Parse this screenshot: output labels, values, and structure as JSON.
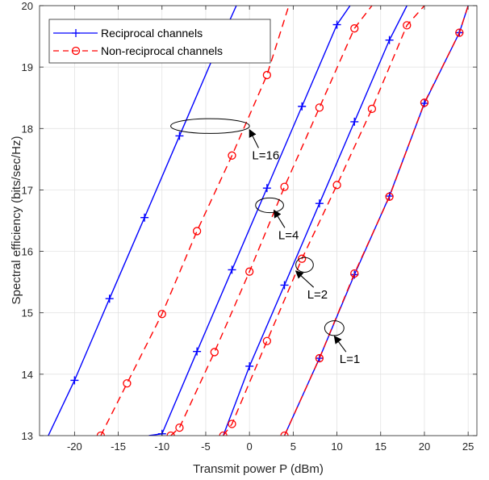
{
  "chart_data": {
    "type": "line",
    "xlabel": "Transmit power P (dBm)",
    "ylabel": "Spectral efficiency (bits/sec/Hz)",
    "xlim": [
      -24,
      26
    ],
    "ylim": [
      13,
      20
    ],
    "xticks": [
      -20,
      -15,
      -10,
      -5,
      0,
      5,
      10,
      15,
      20,
      25
    ],
    "xtick_labels": [
      "-20",
      "-15",
      "-10",
      "-5",
      "0",
      "5",
      "10",
      "15",
      "20",
      "25"
    ],
    "yticks": [
      13,
      14,
      15,
      16,
      17,
      18,
      19,
      20
    ],
    "ytick_labels": [
      "13",
      "14",
      "15",
      "16",
      "17",
      "18",
      "19",
      "20"
    ],
    "grid": true,
    "legend_position": "top-left",
    "legend": [
      {
        "label": "Reciprocal channels",
        "color": "#0000ff",
        "dash": "solid",
        "marker": "plus"
      },
      {
        "label": "Non-reciprocal channels",
        "color": "#ff0000",
        "dash": "dashed",
        "marker": "circle"
      }
    ],
    "series": [
      {
        "group": "L=16",
        "kind": "reciprocal",
        "color": "#0000ff",
        "dash": "solid",
        "marker": "plus",
        "x": [
          -23.0,
          -20,
          -16,
          -12,
          -8,
          -4,
          -1.5
        ],
        "y": [
          13.0,
          13.9,
          15.23,
          16.55,
          17.88,
          19.21,
          20.0
        ]
      },
      {
        "group": "L=16",
        "kind": "non-reciprocal",
        "color": "#ff0000",
        "dash": "dashed",
        "marker": "circle",
        "x": [
          -17.0,
          -14,
          -10,
          -6,
          -2,
          2,
          4.5
        ],
        "y": [
          13.0,
          13.85,
          14.98,
          16.33,
          17.56,
          18.87,
          20.0
        ]
      },
      {
        "group": "L=4",
        "kind": "reciprocal",
        "color": "#0000ff",
        "dash": "solid",
        "marker": "plus",
        "x": [
          -11.5,
          -10,
          -6,
          -2,
          2,
          6,
          10,
          11.5
        ],
        "y": [
          13.0,
          13.03,
          14.37,
          15.7,
          17.03,
          18.36,
          19.69,
          20.0
        ]
      },
      {
        "group": "L=4",
        "kind": "non-reciprocal",
        "color": "#ff0000",
        "dash": "dashed",
        "marker": "circle",
        "x": [
          -9.0,
          -8,
          -4,
          0,
          4,
          8,
          12,
          14.0
        ],
        "y": [
          13.0,
          13.13,
          14.36,
          15.67,
          17.05,
          18.34,
          19.63,
          20.0
        ]
      },
      {
        "group": "L=2",
        "kind": "reciprocal",
        "color": "#0000ff",
        "dash": "solid",
        "marker": "plus",
        "x": [
          -3.0,
          0,
          4,
          8,
          12,
          16,
          18.0
        ],
        "y": [
          13.0,
          14.13,
          15.45,
          16.78,
          18.11,
          19.44,
          20.0
        ]
      },
      {
        "group": "L=2",
        "kind": "non-reciprocal",
        "color": "#ff0000",
        "dash": "dashed",
        "marker": "circle",
        "x": [
          -3.0,
          -2,
          2,
          6,
          10,
          14,
          18,
          20.0
        ],
        "y": [
          13.0,
          13.19,
          14.54,
          15.88,
          17.08,
          18.32,
          19.68,
          20.0
        ]
      },
      {
        "group": "L=1",
        "kind": "reciprocal",
        "color": "#0000ff",
        "dash": "solid",
        "marker": "plus",
        "x": [
          4.0,
          8,
          12,
          16,
          20,
          24,
          25.0
        ],
        "y": [
          13.0,
          14.26,
          15.62,
          16.9,
          18.41,
          19.56,
          20.0
        ]
      },
      {
        "group": "L=1",
        "kind": "non-reciprocal",
        "color": "#ff0000",
        "dash": "dashed",
        "marker": "circle",
        "x": [
          4,
          8,
          12,
          16,
          20,
          24,
          25.0
        ],
        "y": [
          13.0,
          14.26,
          15.64,
          16.89,
          18.42,
          19.56,
          20.0
        ]
      }
    ],
    "annotations": [
      {
        "text": "L=16",
        "ellipse_center": [
          -4.5,
          18.04
        ],
        "ellipse_radius": [
          4.5,
          0.12
        ],
        "arrow_tip": [
          0,
          17.98
        ],
        "text_pos": [
          0.3,
          17.5
        ]
      },
      {
        "text": "L=4",
        "ellipse_center": [
          2.3,
          16.75
        ],
        "ellipse_radius": [
          1.6,
          0.12
        ],
        "arrow_tip": [
          2.8,
          16.67
        ],
        "text_pos": [
          3.3,
          16.2
        ]
      },
      {
        "text": "L=2",
        "ellipse_center": [
          6.3,
          15.78
        ],
        "ellipse_radius": [
          1.0,
          0.12
        ],
        "arrow_tip": [
          5.3,
          15.68
        ],
        "text_pos": [
          6.6,
          15.23
        ]
      },
      {
        "text": "L=1",
        "ellipse_center": [
          9.7,
          14.75
        ],
        "ellipse_radius": [
          1.1,
          0.12
        ],
        "arrow_tip": [
          9.7,
          14.62
        ],
        "text_pos": [
          10.3,
          14.18
        ]
      }
    ]
  }
}
